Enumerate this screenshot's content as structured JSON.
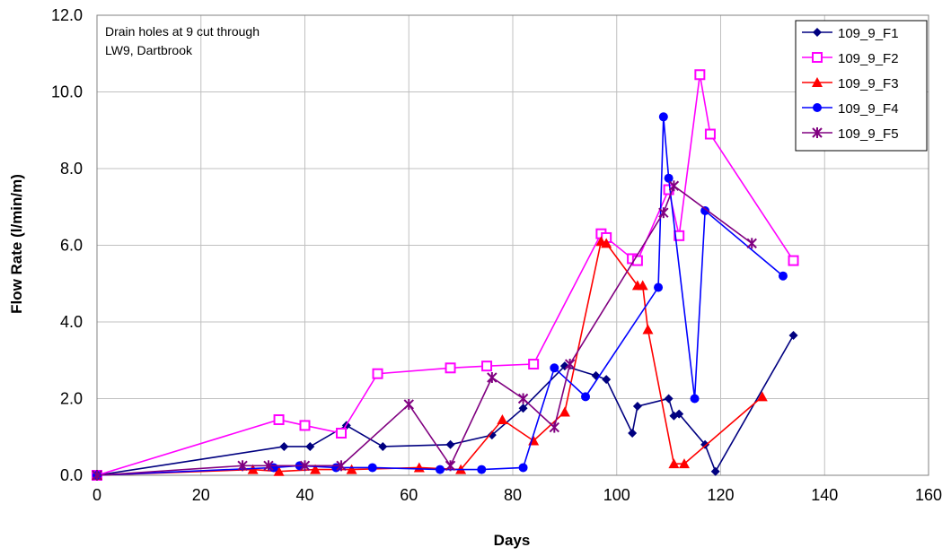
{
  "chart_data": {
    "type": "line",
    "title": "",
    "annotation": [
      "Drain holes at 9 cut through",
      "LW9, Dartbrook"
    ],
    "xlabel": "Days",
    "ylabel": "Flow Rate (l/min/m)",
    "xlim": [
      0,
      160
    ],
    "ylim": [
      0,
      12
    ],
    "xticks": [
      0,
      20,
      40,
      60,
      80,
      100,
      120,
      140,
      160
    ],
    "yticks": [
      0,
      2,
      4,
      6,
      8,
      10,
      12
    ],
    "xtick_labels": [
      "0",
      "20",
      "40",
      "60",
      "80",
      "100",
      "120",
      "140",
      "160"
    ],
    "ytick_labels": [
      "0.0",
      "2.0",
      "4.0",
      "6.0",
      "8.0",
      "10.0",
      "12.0"
    ],
    "grid": true,
    "legend_position": "top-right",
    "series": [
      {
        "name": "109_9_F1",
        "color": "#000080",
        "marker": "diamond",
        "x": [
          0,
          36,
          41,
          48,
          55,
          68,
          76,
          82,
          90,
          96,
          98,
          103,
          104,
          110,
          111,
          112,
          117,
          119,
          134
        ],
        "y": [
          0.0,
          0.75,
          0.75,
          1.3,
          0.75,
          0.8,
          1.05,
          1.75,
          2.85,
          2.6,
          2.5,
          1.1,
          1.8,
          2.0,
          1.55,
          1.6,
          0.8,
          0.1,
          3.65
        ]
      },
      {
        "name": "109_9_F2",
        "color": "#FF00FF",
        "marker": "square",
        "x": [
          0,
          35,
          40,
          47,
          54,
          68,
          75,
          84,
          97,
          98,
          103,
          104,
          110,
          112,
          116,
          118,
          134
        ],
        "y": [
          0.0,
          1.45,
          1.3,
          1.1,
          2.65,
          2.8,
          2.85,
          2.9,
          6.3,
          6.2,
          5.65,
          5.6,
          7.45,
          6.25,
          10.45,
          8.9,
          5.6
        ]
      },
      {
        "name": "109_9_F3",
        "color": "#FF0000",
        "marker": "triangle",
        "x": [
          0,
          30,
          35,
          42,
          49,
          62,
          70,
          78,
          84,
          90,
          97,
          98,
          104,
          105,
          106,
          111,
          113,
          128
        ],
        "y": [
          0.0,
          0.15,
          0.1,
          0.15,
          0.15,
          0.2,
          0.15,
          1.45,
          0.9,
          1.65,
          6.1,
          6.05,
          4.95,
          4.95,
          3.8,
          0.3,
          0.3,
          2.05
        ]
      },
      {
        "name": "109_9_F4",
        "color": "#0000FF",
        "marker": "circle",
        "x": [
          0,
          34,
          39,
          46,
          53,
          66,
          74,
          82,
          88,
          94,
          108,
          109,
          110,
          115,
          117,
          132
        ],
        "y": [
          0.0,
          0.2,
          0.25,
          0.2,
          0.2,
          0.15,
          0.15,
          0.2,
          2.8,
          2.05,
          4.9,
          9.35,
          7.75,
          2.0,
          6.9,
          5.2
        ]
      },
      {
        "name": "109_9_F5",
        "color": "#800080",
        "marker": "star",
        "x": [
          0,
          28,
          33,
          40,
          47,
          60,
          68,
          76,
          82,
          88,
          91,
          109,
          111,
          126
        ],
        "y": [
          0.0,
          0.25,
          0.25,
          0.25,
          0.25,
          1.85,
          0.25,
          2.55,
          2.0,
          1.25,
          2.9,
          6.85,
          7.55,
          6.05
        ]
      }
    ]
  }
}
